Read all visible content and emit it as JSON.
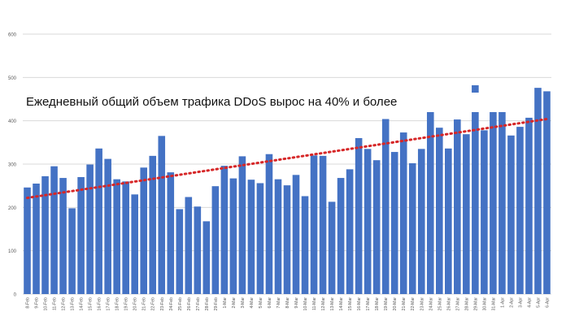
{
  "chart_data": {
    "type": "bar",
    "title": "Ежедневный общий объем трафика DDoS вырос на 40% и более",
    "xlabel": "",
    "ylabel": "",
    "ylim": [
      0,
      600
    ],
    "yticks": [
      "0",
      "100",
      "200",
      "300",
      "400",
      "500",
      "600"
    ],
    "grid": true,
    "legend": "none",
    "categories": [
      "8-Feb",
      "9-Feb",
      "10-Feb",
      "11-Feb",
      "12-Feb",
      "13-Feb",
      "14-Feb",
      "15-Feb",
      "16-Feb",
      "17-Feb",
      "18-Feb",
      "19-Feb",
      "20-Feb",
      "21-Feb",
      "22-Feb",
      "23-Feb",
      "24-Feb",
      "25-Feb",
      "26-Feb",
      "27-Feb",
      "28-Feb",
      "29-Feb",
      "1-Mar",
      "2-Mar",
      "3-Mar",
      "4-Mar",
      "5-Mar",
      "6-Mar",
      "7-Mar",
      "8-Mar",
      "9-Mar",
      "10-Mar",
      "11-Mar",
      "12-Mar",
      "13-Mar",
      "14-Mar",
      "15-Mar",
      "16-Mar",
      "17-Mar",
      "18-Mar",
      "19-Mar",
      "20-Mar",
      "21-Mar",
      "22-Mar",
      "23-Mar",
      "24-Mar",
      "25-Mar",
      "26-Mar",
      "27-Mar",
      "28-Mar",
      "29-Mar",
      "30-Mar",
      "31-Mar",
      "1-Apr",
      "2-Apr",
      "3-Apr",
      "4-Apr",
      "5-Apr",
      "6-Apr"
    ],
    "values": [
      246,
      255,
      272,
      295,
      268,
      198,
      270,
      299,
      336,
      312,
      265,
      260,
      230,
      292,
      319,
      365,
      281,
      196,
      224,
      202,
      168,
      249,
      296,
      267,
      318,
      264,
      256,
      323,
      265,
      251,
      275,
      226,
      320,
      319,
      213,
      268,
      288,
      360,
      335,
      309,
      404,
      328,
      373,
      302,
      335,
      423,
      384,
      336,
      403,
      369,
      482,
      378,
      463,
      438,
      366,
      386,
      407,
      476,
      468
    ],
    "trendline": {
      "start": 222,
      "end": 404
    },
    "colors": {
      "bar": "#4472c4",
      "trend": "#d62728",
      "grid": "#d9d9d9",
      "axis_text": "#595959"
    }
  }
}
